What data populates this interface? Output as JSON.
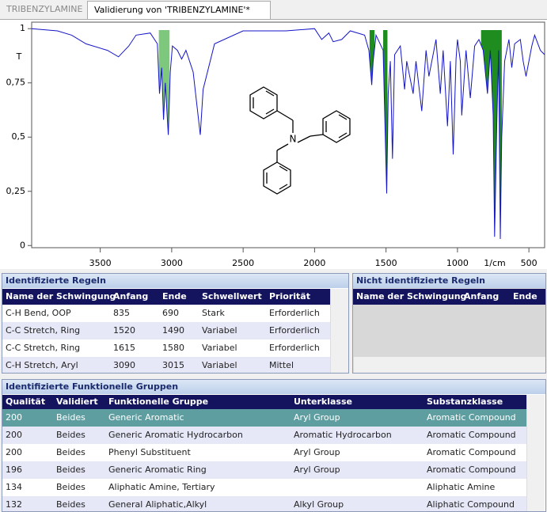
{
  "tabs": [
    "TRIBENZYLAMINE",
    "Validierung von 'TRIBENZYLAMINE'*"
  ],
  "chart_data": {
    "type": "line",
    "color": "#1414c8",
    "x_label": "1/cm",
    "y_label": "T",
    "xlim": [
      3980,
      390
    ],
    "ylim": [
      -0.01,
      1.03
    ],
    "xticks": [
      3500,
      3000,
      2500,
      2000,
      1500,
      1000,
      500
    ],
    "yticks": [
      0,
      {
        "value": 0.25,
        "label": "0,25"
      },
      {
        "value": 0.5,
        "label": "0,5"
      },
      {
        "value": 0.75,
        "label": "0,75"
      },
      1
    ],
    "x": [
      3980,
      3800,
      3700,
      3600,
      3450,
      3372,
      3300,
      3250,
      3150,
      3100,
      3085,
      3070,
      3057,
      3045,
      3024,
      3010,
      2995,
      2960,
      2930,
      2900,
      2850,
      2800,
      2780,
      2700,
      2500,
      2200,
      2000,
      1950,
      1900,
      1870,
      1810,
      1750,
      1650,
      1620,
      1600,
      1590,
      1570,
      1520,
      1495,
      1485,
      1470,
      1455,
      1440,
      1400,
      1370,
      1355,
      1310,
      1290,
      1250,
      1220,
      1200,
      1150,
      1120,
      1100,
      1070,
      1050,
      1030,
      1010,
      1000,
      980,
      970,
      940,
      910,
      880,
      850,
      820,
      790,
      770,
      750,
      740,
      725,
      712,
      700,
      690,
      670,
      640,
      620,
      600,
      560,
      540,
      520,
      480,
      460,
      420,
      390
    ],
    "values": [
      1.0,
      0.99,
      0.97,
      0.93,
      0.9,
      0.87,
      0.92,
      0.97,
      0.98,
      0.93,
      0.7,
      0.82,
      0.58,
      0.75,
      0.51,
      0.8,
      0.92,
      0.9,
      0.86,
      0.9,
      0.8,
      0.51,
      0.72,
      0.93,
      0.99,
      0.99,
      1.0,
      0.95,
      0.98,
      0.94,
      0.95,
      0.99,
      0.97,
      0.9,
      0.74,
      0.85,
      0.97,
      0.9,
      0.24,
      0.7,
      0.85,
      0.4,
      0.88,
      0.92,
      0.72,
      0.85,
      0.7,
      0.85,
      0.62,
      0.9,
      0.78,
      0.95,
      0.7,
      0.9,
      0.55,
      0.85,
      0.42,
      0.86,
      0.95,
      0.85,
      0.6,
      0.9,
      0.68,
      0.92,
      0.95,
      0.9,
      0.7,
      0.9,
      0.6,
      0.04,
      0.55,
      0.9,
      0.03,
      0.5,
      0.85,
      0.95,
      0.82,
      0.93,
      0.95,
      0.85,
      0.78,
      0.92,
      0.97,
      0.9,
      0.88
    ]
  },
  "structure": {
    "atom": "N"
  },
  "identified_rules": {
    "title": "Identifizierte Regeln",
    "columns": [
      "Name der Schwingung",
      "Anfang",
      "Ende",
      "Schwellwert",
      "Priorität"
    ],
    "rows": [
      [
        "C-H Bend, OOP",
        "835",
        "690",
        "Stark",
        "Erforderlich"
      ],
      [
        "C-C Stretch, Ring",
        "1520",
        "1490",
        "Variabel",
        "Erforderlich"
      ],
      [
        "C-C Stretch, Ring",
        "1615",
        "1580",
        "Variabel",
        "Erforderlich"
      ],
      [
        "C-H Stretch, Aryl",
        "3090",
        "3015",
        "Variabel",
        "Mittel"
      ]
    ]
  },
  "unidentified_rules": {
    "title": "Nicht identifizierte Regeln",
    "columns": [
      "Name der Schwingung",
      "Anfang",
      "Ende"
    ],
    "rows": []
  },
  "functional_groups": {
    "title": "Identifizierte Funktionelle Gruppen",
    "columns": [
      "Qualität",
      "Validiert",
      "Funktionelle Gruppe",
      "Unterklasse",
      "Substanzklasse"
    ],
    "rows": [
      [
        "200",
        "Beides",
        "Generic Aromatic",
        "Aryl Group",
        "Aromatic Compound"
      ],
      [
        "200",
        "Beides",
        "Generic Aromatic Hydrocarbon",
        "Aromatic Hydrocarbon",
        "Aromatic Compound"
      ],
      [
        "200",
        "Beides",
        "Phenyl Substituent",
        "Aryl Group",
        "Aromatic Compound"
      ],
      [
        "196",
        "Beides",
        "Generic Aromatic Ring",
        "Aryl Group",
        "Aromatic Compound"
      ],
      [
        "134",
        "Beides",
        "Aliphatic Amine, Tertiary",
        null,
        "Aliphatic Amine"
      ],
      [
        "132",
        "Beides",
        "General Aliphatic,Alkyl",
        "Alkyl Group",
        "Aliphatic Compound"
      ]
    ]
  }
}
